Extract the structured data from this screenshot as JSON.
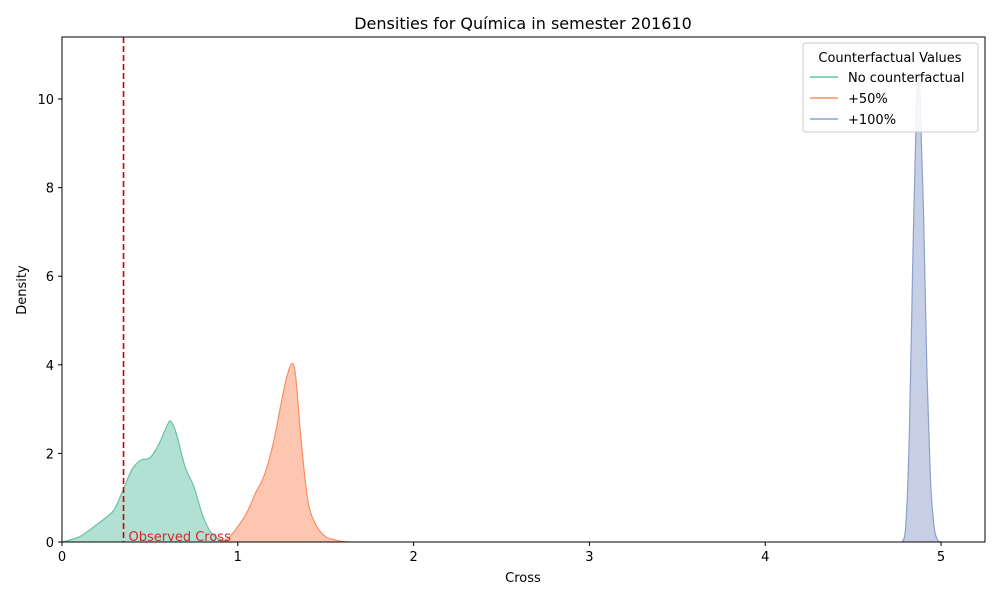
{
  "chart_data": {
    "type": "area",
    "title": "Densities for Química in semester 201610",
    "xlabel": "Cross",
    "ylabel": "Density",
    "xlim": [
      0,
      5.25
    ],
    "ylim": [
      0,
      11.4
    ],
    "x_ticks": [
      0,
      1,
      2,
      3,
      4,
      5
    ],
    "x_tick_labels": [
      "0",
      "1",
      "2",
      "3",
      "4",
      "5"
    ],
    "y_ticks": [
      0,
      2,
      4,
      6,
      8,
      10
    ],
    "y_tick_labels": [
      "0",
      "2",
      "4",
      "6",
      "8",
      "10"
    ],
    "grid": false,
    "legend": {
      "title": "Counterfactual Values",
      "placement": "top-right"
    },
    "series": [
      {
        "name": "No counterfactual",
        "color": "#66c2a5",
        "x": [
          0.0,
          0.05,
          0.1,
          0.15,
          0.2,
          0.25,
          0.3,
          0.35,
          0.4,
          0.45,
          0.5,
          0.55,
          0.6,
          0.62,
          0.65,
          0.7,
          0.75,
          0.8,
          0.85,
          0.9,
          0.95
        ],
        "y": [
          0.0,
          0.05,
          0.12,
          0.25,
          0.4,
          0.55,
          0.75,
          1.2,
          1.65,
          1.85,
          1.9,
          2.2,
          2.65,
          2.72,
          2.45,
          1.7,
          1.25,
          0.6,
          0.2,
          0.06,
          0.0
        ]
      },
      {
        "name": "+50%",
        "color": "#fc8d62",
        "x": [
          0.9,
          0.95,
          1.0,
          1.05,
          1.1,
          1.15,
          1.2,
          1.25,
          1.28,
          1.31,
          1.33,
          1.36,
          1.4,
          1.45,
          1.5,
          1.55,
          1.6,
          1.65
        ],
        "y": [
          0.0,
          0.1,
          0.35,
          0.65,
          1.1,
          1.5,
          2.2,
          3.2,
          3.75,
          4.03,
          3.7,
          2.3,
          0.9,
          0.35,
          0.12,
          0.05,
          0.01,
          0.0
        ]
      },
      {
        "name": "+100%",
        "color": "#8da0cb",
        "x": [
          4.78,
          4.8,
          4.82,
          4.84,
          4.86,
          4.87,
          4.88,
          4.9,
          4.92,
          4.94,
          4.96,
          4.98,
          5.0
        ],
        "y": [
          0.0,
          0.4,
          2.5,
          6.5,
          9.8,
          10.5,
          10.1,
          7.5,
          3.8,
          1.4,
          0.35,
          0.05,
          0.0
        ]
      }
    ],
    "annotations": [
      {
        "type": "vline",
        "x": 0.35,
        "color": "#cc0000",
        "style": "dashed",
        "label": "Observed Cross"
      }
    ]
  }
}
